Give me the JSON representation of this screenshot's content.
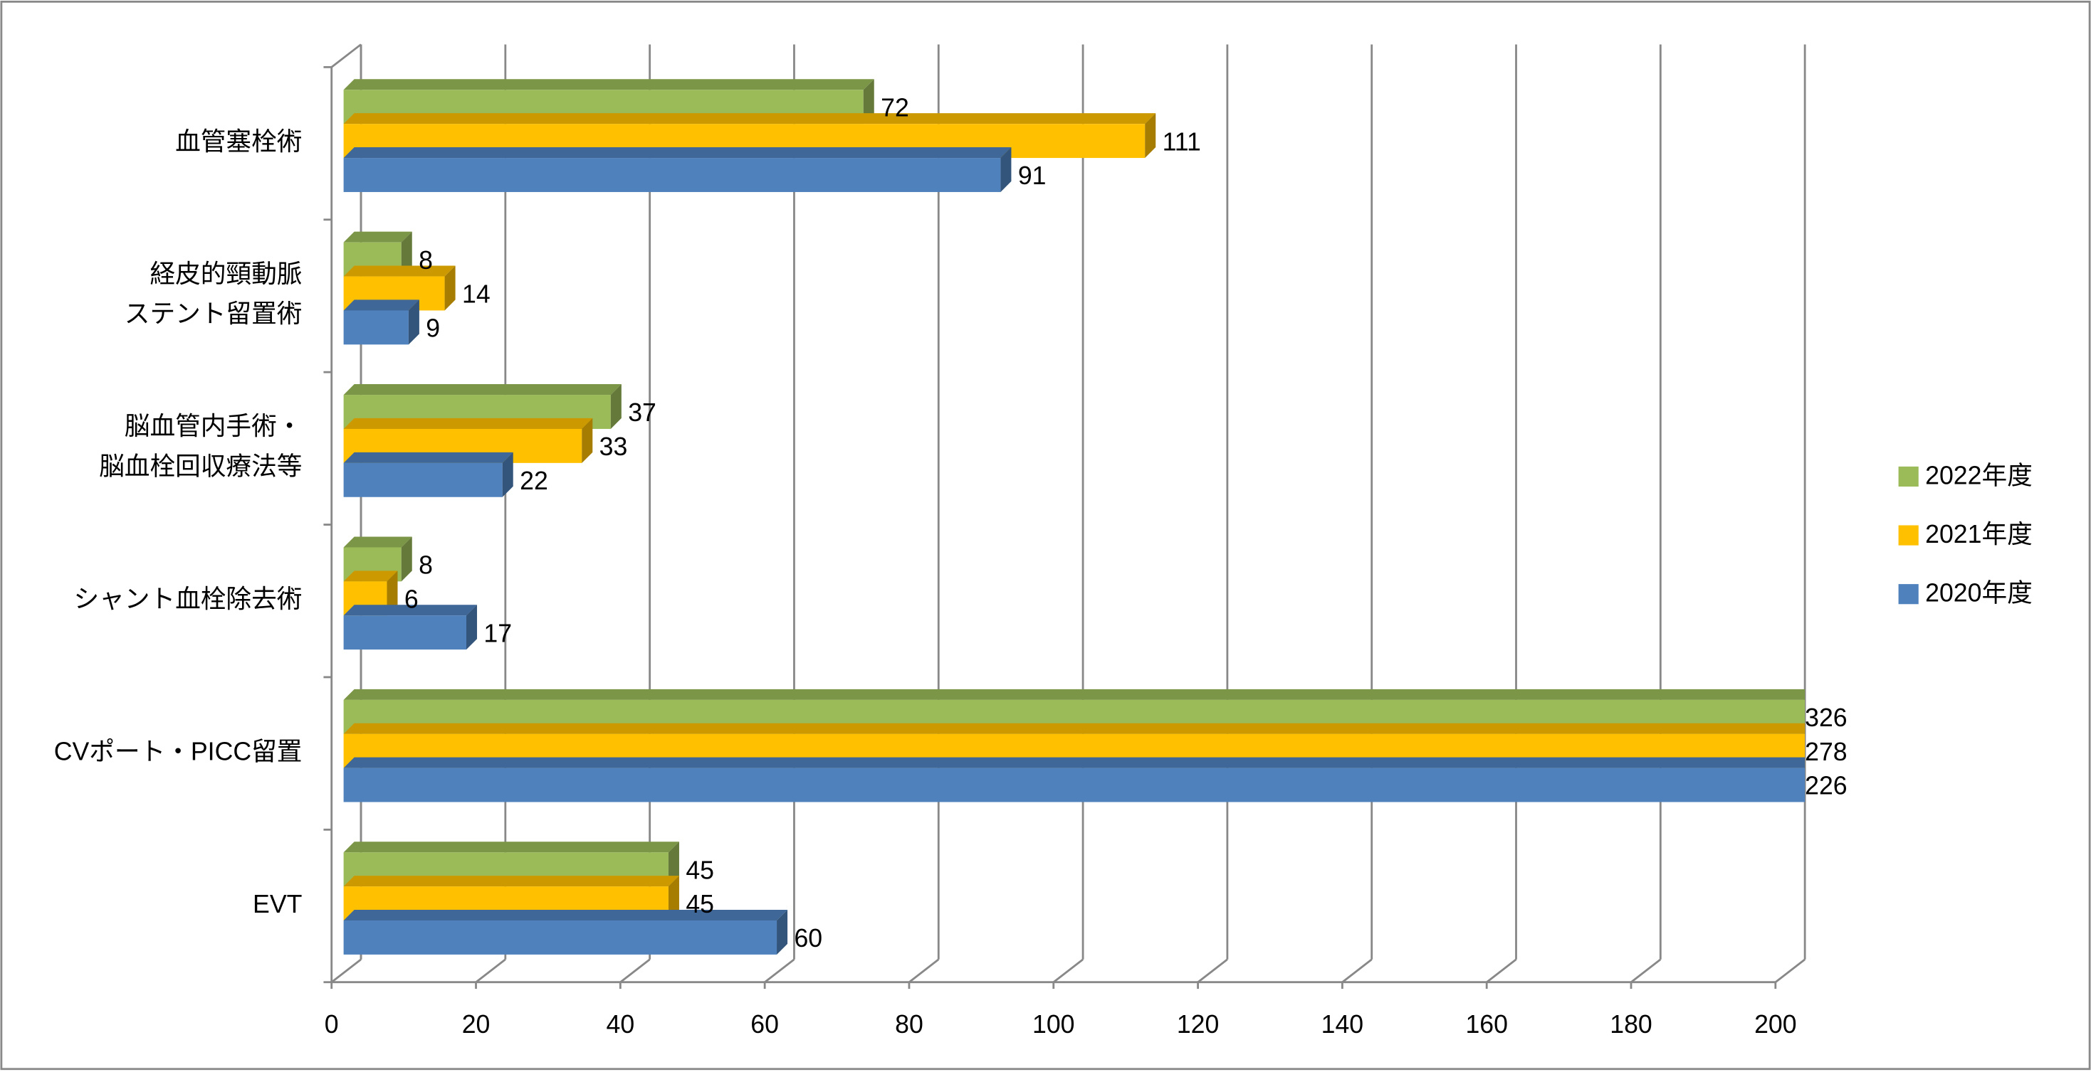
{
  "chart_data": {
    "type": "bar3d_horizontal",
    "categories": [
      "血管塞栓術",
      "経皮的頸動脈\nステント留置術",
      "脳血管内手術・\n脳血栓回収療法等",
      "シャント血栓除去術",
      "CVポート・PICC留置",
      "EVT"
    ],
    "series": [
      {
        "name": "2022年度",
        "color": "#9bbb59",
        "values": [
          72,
          8,
          37,
          8,
          326,
          45
        ]
      },
      {
        "name": "2021年度",
        "color": "#ffc000",
        "values": [
          111,
          14,
          33,
          6,
          278,
          45
        ]
      },
      {
        "name": "2020年度",
        "color": "#4f81bd",
        "values": [
          91,
          9,
          22,
          17,
          226,
          60
        ]
      }
    ],
    "xlim": [
      0,
      200
    ],
    "xticks": [
      0,
      20,
      40,
      60,
      80,
      100,
      120,
      140,
      160,
      180,
      200
    ],
    "grid": true,
    "legend": "right"
  }
}
